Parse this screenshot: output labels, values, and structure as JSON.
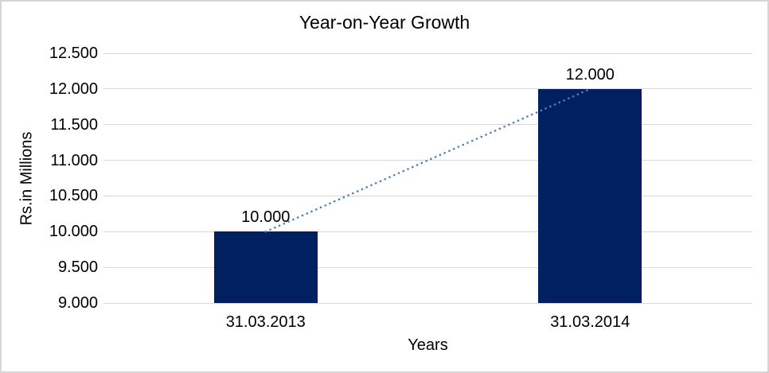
{
  "chart_data": {
    "type": "bar",
    "title": "Year-on-Year Growth",
    "xlabel": "Years",
    "ylabel": "Rs.in Millions",
    "categories": [
      "31.03.2013",
      "31.03.2014"
    ],
    "values": [
      10000,
      12000
    ],
    "value_labels": [
      "10.000",
      "12.000"
    ],
    "ylim": [
      9000,
      12500
    ],
    "yticks": [
      {
        "value": 12500,
        "label": "12.500"
      },
      {
        "value": 12000,
        "label": "12.000"
      },
      {
        "value": 11500,
        "label": "11.500"
      },
      {
        "value": 11000,
        "label": "11.000"
      },
      {
        "value": 10500,
        "label": "10.500"
      },
      {
        "value": 10000,
        "label": "10.000"
      },
      {
        "value": 9500,
        "label": "9.500"
      },
      {
        "value": 9000,
        "label": "9.000"
      }
    ],
    "grid": true,
    "legend": false,
    "trendline": {
      "style": "dotted",
      "color": "#4f81bd",
      "points": [
        [
          0,
          10000
        ],
        [
          1,
          12000
        ]
      ]
    },
    "colors": {
      "bar": "#002060",
      "gridline": "#d9d9d9",
      "text": "#000000",
      "frame_border": "#d5d5d5",
      "background": "#ffffff"
    }
  }
}
